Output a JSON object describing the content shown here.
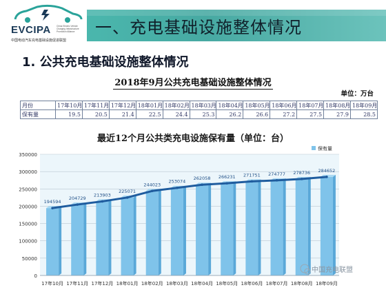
{
  "header": {
    "logo": {
      "name": "EVCIPA",
      "subtitle_en": "China Electric Vehicle Charging Infrastructure Promotion Alliance",
      "subtitle_cn": "中国电动汽车充电基础设施促进联盟"
    },
    "title": "一、充电基础设施整体情况"
  },
  "section": {
    "heading": "1. 公共充电基础设施整体情况"
  },
  "table": {
    "title": "2018年9月公共充电基础设施整体情况",
    "unit": "单位：万台",
    "header_label": "月份",
    "value_label": "保有量",
    "months": [
      "17年10月",
      "17年11月",
      "17年12月",
      "18年01月",
      "18年02月",
      "18年03月",
      "18年04月",
      "18年05月",
      "18年06月",
      "18年07月",
      "18年08月",
      "18年09月"
    ],
    "values": [
      "19.5",
      "20.5",
      "21.4",
      "22.5",
      "24.4",
      "25.3",
      "26.2",
      "26.6",
      "27.2",
      "27.5",
      "27.9",
      "28.5"
    ]
  },
  "chart_data": {
    "type": "bar",
    "title": "最近12个月公共类充电设施保有量（单位：台）",
    "categories": [
      "17年10月",
      "17年11月",
      "17年12月",
      "18年01月",
      "18年02月",
      "18年03月",
      "18年04月",
      "18年05月",
      "18年06月",
      "18年07月",
      "18年08月",
      "18年09月"
    ],
    "series": [
      {
        "name": "保有量",
        "values": [
          194594,
          204729,
          213903,
          225071,
          244023,
          253074,
          262058,
          266231,
          271751,
          274777,
          278736,
          284652
        ]
      }
    ],
    "trend_line": true,
    "data_labels": true,
    "ylim": [
      0,
      350000
    ],
    "yticks": [
      0,
      50000,
      100000,
      150000,
      200000,
      250000,
      300000,
      350000
    ],
    "grid": true,
    "legend": "top-right",
    "colors": {
      "bar": "#7fc3ea",
      "bar_dark": "#5aa8d8",
      "line": "#1f5c9e",
      "plot_bg": "#dceef8"
    }
  },
  "watermark": "中国充电联盟"
}
